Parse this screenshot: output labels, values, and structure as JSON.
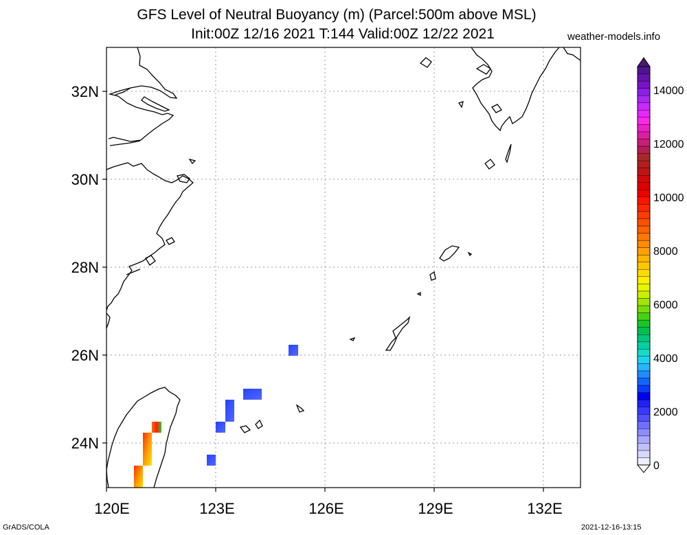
{
  "title_line1": "GFS Level of Neutral Buoyancy (m) (Parcel:500m above MSL)",
  "title_line2": "Init:00Z 12/16 2021 T:144 Valid:00Z 12/22 2021",
  "site": "weather-models.info",
  "footer_left": "GrADS/COLA",
  "footer_right": "2021-12-16-13:15",
  "map": {
    "lon_labels": [
      "120E",
      "123E",
      "126E",
      "129E",
      "132E"
    ],
    "lat_labels": [
      "32N",
      "30N",
      "28N",
      "26N",
      "24N"
    ],
    "lon_range": [
      120,
      133
    ],
    "lat_range": [
      23,
      33
    ]
  },
  "colorbar": {
    "labels": [
      "14000",
      "12000",
      "10000",
      "8000",
      "6000",
      "4000",
      "2000",
      "0"
    ]
  },
  "colors": {
    "frame": "#000000",
    "grid": "#999999"
  }
}
